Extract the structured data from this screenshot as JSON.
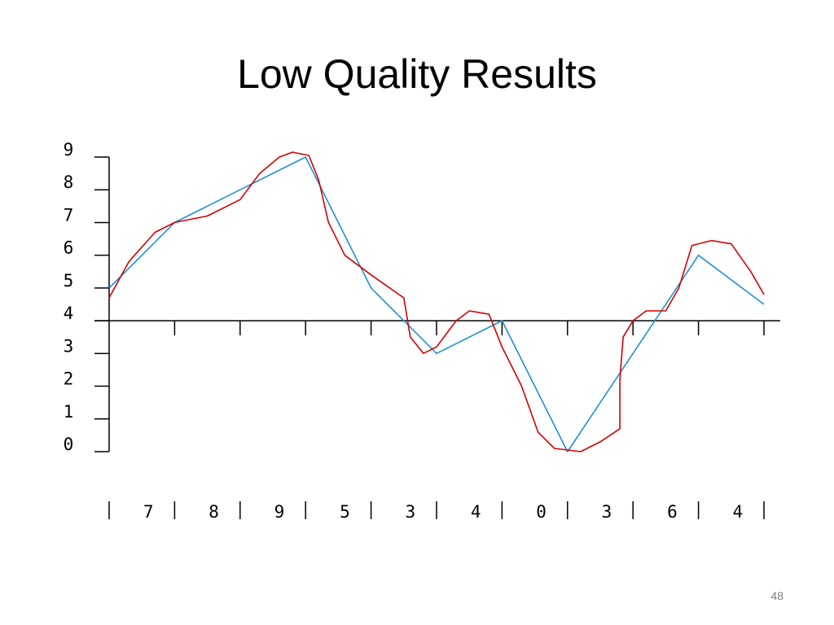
{
  "slide": {
    "title": "Low Quality Results",
    "page_number": "48"
  },
  "chart_data": {
    "type": "line",
    "title": "Low Quality Results",
    "xlabel": "",
    "ylabel": "",
    "ylim": [
      0,
      9
    ],
    "y_ticks": [
      0,
      1,
      2,
      3,
      4,
      5,
      6,
      7,
      8,
      9
    ],
    "x": [
      0,
      1,
      2,
      3,
      4,
      5,
      6,
      7,
      8,
      9,
      10
    ],
    "categories": [
      "7",
      "8",
      "9",
      "5",
      "3",
      "4",
      "0",
      "3",
      "6",
      "4"
    ],
    "axis_line_y": 4,
    "grid": false,
    "legend": "none",
    "colors": {
      "series_1": "#1f8fd8",
      "series_2": "#d40000",
      "axis": "#000000"
    },
    "series": [
      {
        "values": [
          [
            0,
            5
          ],
          [
            1,
            7
          ],
          [
            2,
            8
          ],
          [
            3,
            9
          ],
          [
            4,
            5
          ],
          [
            5,
            3
          ],
          [
            6,
            4
          ],
          [
            7,
            0
          ],
          [
            8,
            3
          ],
          [
            9,
            6
          ],
          [
            10,
            4.5
          ]
        ]
      },
      {
        "values": [
          [
            0,
            4.7
          ],
          [
            0.3,
            5.8
          ],
          [
            0.7,
            6.7
          ],
          [
            1,
            7
          ],
          [
            1.5,
            7.2
          ],
          [
            2,
            7.7
          ],
          [
            2.3,
            8.5
          ],
          [
            2.6,
            9
          ],
          [
            2.8,
            9.15
          ],
          [
            3.05,
            9.05
          ],
          [
            3.2,
            8.3
          ],
          [
            3.35,
            7
          ],
          [
            3.6,
            6
          ],
          [
            4,
            5.4
          ],
          [
            4.5,
            4.7
          ],
          [
            4.6,
            3.5
          ],
          [
            4.8,
            3
          ],
          [
            5,
            3.2
          ],
          [
            5.3,
            4
          ],
          [
            5.5,
            4.3
          ],
          [
            5.8,
            4.2
          ],
          [
            6,
            3.2
          ],
          [
            6.3,
            2
          ],
          [
            6.55,
            0.6
          ],
          [
            6.8,
            0.1
          ],
          [
            7.2,
            0
          ],
          [
            7.5,
            0.3
          ],
          [
            7.8,
            0.7
          ],
          [
            7.8,
            2.2
          ],
          [
            7.85,
            3.5
          ],
          [
            8,
            4
          ],
          [
            8.2,
            4.3
          ],
          [
            8.5,
            4.3
          ],
          [
            8.7,
            5
          ],
          [
            8.9,
            6.3
          ],
          [
            9.2,
            6.45
          ],
          [
            9.5,
            6.35
          ],
          [
            9.8,
            5.5
          ],
          [
            10,
            4.8
          ]
        ]
      }
    ]
  }
}
